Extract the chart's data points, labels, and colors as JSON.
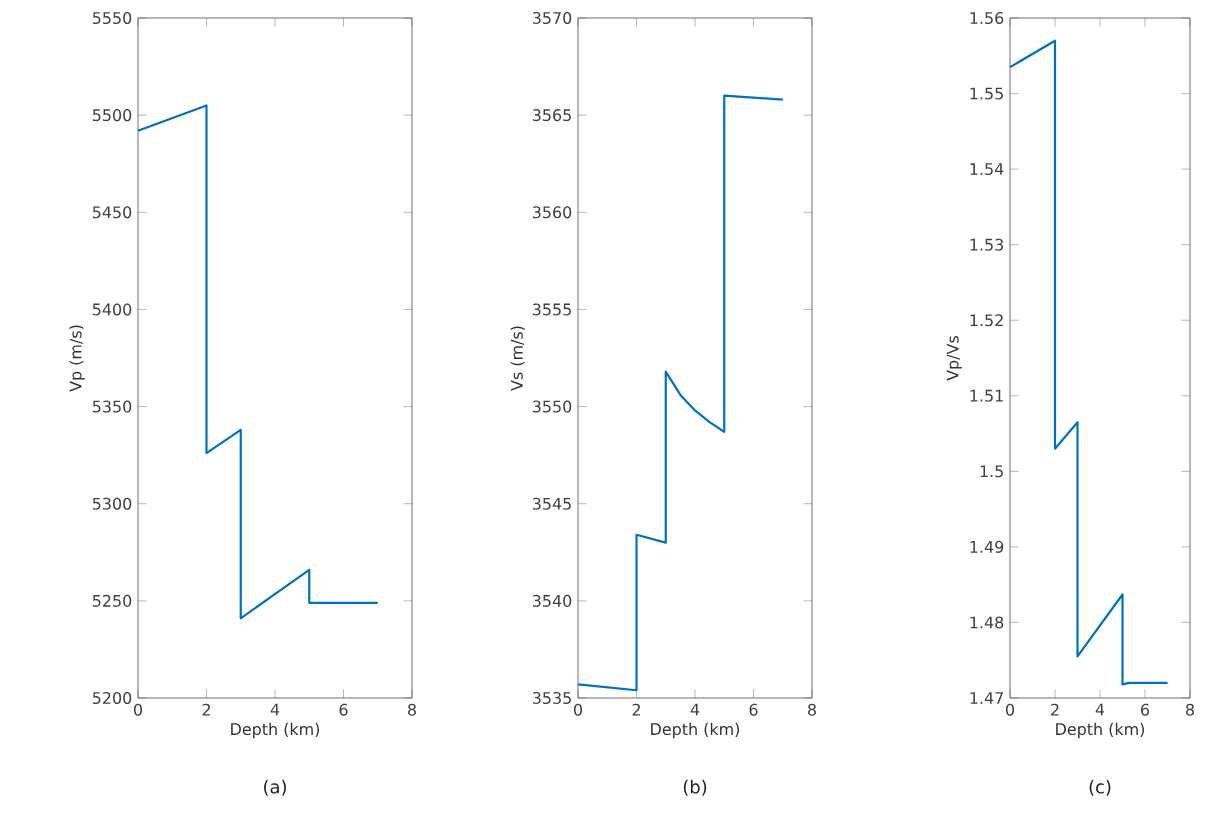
{
  "chart_data": [
    {
      "type": "line",
      "xlabel": "Depth (km)",
      "ylabel": "Vp (m/s)",
      "annotations": [
        "(a)"
      ],
      "color": "#0072bd",
      "line_style": "solid",
      "marker": "none",
      "grid": false,
      "x": [
        0,
        2,
        2,
        3,
        3,
        5,
        5,
        7
      ],
      "values": [
        5492,
        5505,
        5326,
        5338,
        5241,
        5266,
        5249,
        5249
      ],
      "xlim": [
        0,
        8
      ],
      "xticks": [
        0,
        2,
        4,
        6,
        8
      ],
      "ylim": [
        5200,
        5550
      ],
      "yticks": [
        5200,
        5250,
        5300,
        5350,
        5400,
        5450,
        5500,
        5550
      ]
    },
    {
      "type": "line",
      "xlabel": "Depth (km)",
      "ylabel": "Vs (m/s)",
      "annotations": [
        "(b)"
      ],
      "color": "#0072bd",
      "line_style": "solid",
      "marker": "none",
      "grid": false,
      "x": [
        0,
        2,
        2,
        3,
        3,
        3.5,
        4,
        4.5,
        5,
        5,
        7
      ],
      "values": [
        3535.7,
        3535.4,
        3543.4,
        3543.0,
        3551.8,
        3550.6,
        3549.8,
        3549.2,
        3548.7,
        3566.0,
        3565.8
      ],
      "xlim": [
        0,
        8
      ],
      "xticks": [
        0,
        2,
        4,
        6,
        8
      ],
      "ylim": [
        3535,
        3570
      ],
      "yticks": [
        3535,
        3540,
        3545,
        3550,
        3555,
        3560,
        3565,
        3570
      ]
    },
    {
      "type": "line",
      "xlabel": "Depth (km)",
      "ylabel": "Vp/Vs",
      "annotations": [
        "(c)"
      ],
      "color": "#0072bd",
      "line_style": "solid",
      "marker": "none",
      "grid": false,
      "x": [
        0,
        2,
        2,
        3,
        3,
        5,
        5,
        5.3,
        7
      ],
      "values": [
        1.5535,
        1.557,
        1.503,
        1.5065,
        1.4755,
        1.4837,
        1.4718,
        1.472,
        1.472
      ],
      "xlim": [
        0,
        8
      ],
      "xticks": [
        0,
        2,
        4,
        6,
        8
      ],
      "ylim": [
        1.47,
        1.56
      ],
      "yticks": [
        1.47,
        1.48,
        1.49,
        1.5,
        1.51,
        1.52,
        1.53,
        1.54,
        1.55,
        1.56
      ]
    }
  ]
}
